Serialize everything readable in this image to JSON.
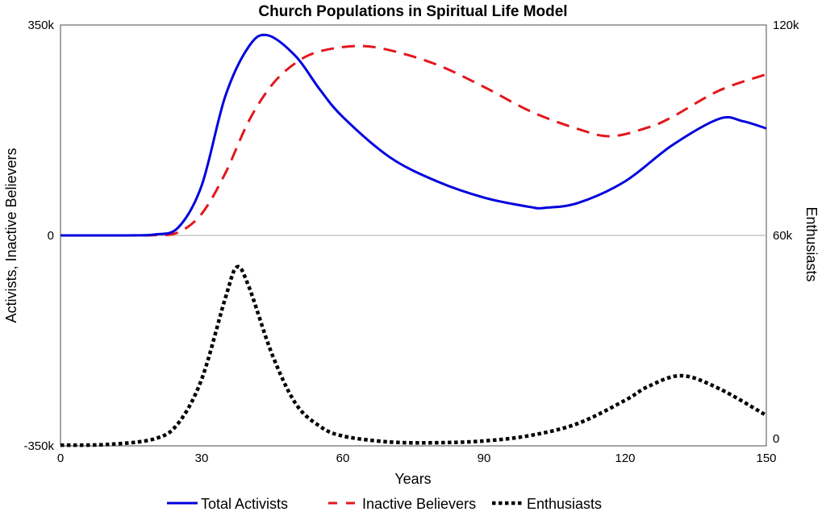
{
  "chart_data": {
    "type": "line",
    "title": "Church Populations in Spiritual Life Model",
    "xlabel": "Years",
    "ylabel_left": "Activists, Inactive Believers",
    "ylabel_right": "Enthusiasts",
    "xlim": [
      0,
      150
    ],
    "ylim_left": [
      -350000,
      350000
    ],
    "ylim_right": [
      0,
      120000
    ],
    "x_ticks": [
      "0",
      "30",
      "60",
      "90",
      "120",
      "150"
    ],
    "x_tick_values": [
      0,
      30,
      60,
      90,
      120,
      150
    ],
    "y_left_ticks": [
      "350k",
      "0",
      "-350k"
    ],
    "y_left_tick_values": [
      350000,
      0,
      -350000
    ],
    "y_right_ticks": [
      "120k",
      "60k",
      "0"
    ],
    "y_right_tick_values": [
      120000,
      60000,
      0
    ],
    "zero_line": true,
    "grid": false,
    "legend_position": "bottom",
    "series": [
      {
        "name": "Total Activists",
        "axis": "left",
        "color": "#0000dd",
        "style": "solid",
        "x": [
          0,
          10,
          15,
          20,
          25,
          30,
          35,
          40,
          44,
          50,
          55,
          60,
          70,
          80,
          90,
          100,
          103,
          110,
          120,
          130,
          140,
          145,
          150
        ],
        "values": [
          0,
          0,
          200,
          1500,
          13000,
          83000,
          231000,
          314000,
          333000,
          298000,
          244000,
          197000,
          130000,
          90000,
          63000,
          47000,
          46000,
          54000,
          90000,
          150000,
          194000,
          190000,
          178000
        ]
      },
      {
        "name": "Inactive Believers",
        "axis": "left",
        "color": "#e3161b",
        "style": "dashed",
        "x": [
          0,
          10,
          20,
          25,
          30,
          35,
          40,
          45,
          50,
          55,
          63,
          70,
          80,
          90,
          100,
          110,
          117,
          125,
          130,
          140,
          150
        ],
        "values": [
          0,
          0,
          500,
          5000,
          36000,
          103000,
          190000,
          251000,
          287000,
          306000,
          315000,
          308000,
          284000,
          247000,
          206000,
          177000,
          165000,
          180000,
          197000,
          241000,
          268000
        ]
      },
      {
        "name": "Enthusiasts",
        "axis": "right",
        "color": "#000000",
        "style": "dotted",
        "x": [
          0,
          10,
          20,
          25,
          30,
          35,
          37.5,
          40,
          45,
          50,
          55,
          60,
          70,
          80,
          90,
          100,
          110,
          120,
          125,
          132,
          140,
          150
        ],
        "values": [
          200,
          400,
          2000,
          6400,
          19000,
          42000,
          51000,
          45500,
          26000,
          12000,
          5700,
          2800,
          1100,
          900,
          1400,
          3000,
          6400,
          13000,
          17000,
          20000,
          16300,
          8700
        ]
      }
    ]
  }
}
